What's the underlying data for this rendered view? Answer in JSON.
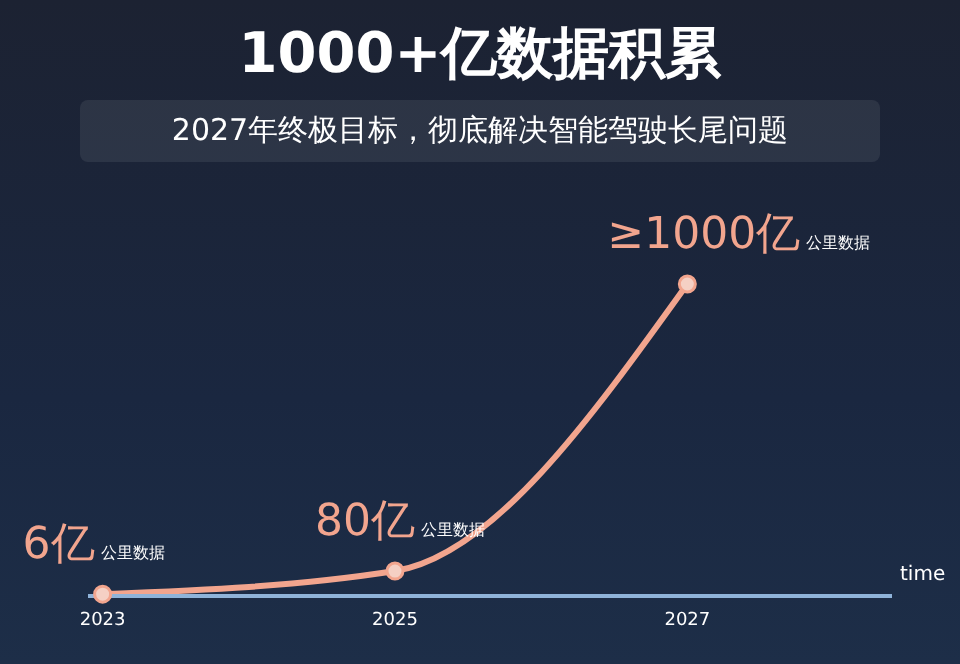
{
  "chart_data": {
    "type": "line",
    "title": "1000+亿数据积累",
    "subtitle": "2027年终极目标，彻底解决智能驾驶长尾问题",
    "xlabel": "time",
    "x": [
      2023,
      2025,
      2027
    ],
    "series": [
      {
        "color": "#f2a58e",
        "values": [
          6,
          80,
          1000
        ],
        "value_labels": [
          "6亿 公里数据",
          "80亿 公里数据",
          "≥1000亿 公里数据"
        ]
      }
    ],
    "xlim": [
      2022.9,
      2028.4
    ],
    "xticks": [
      2023,
      2025,
      2027
    ],
    "marker": "circle"
  }
}
